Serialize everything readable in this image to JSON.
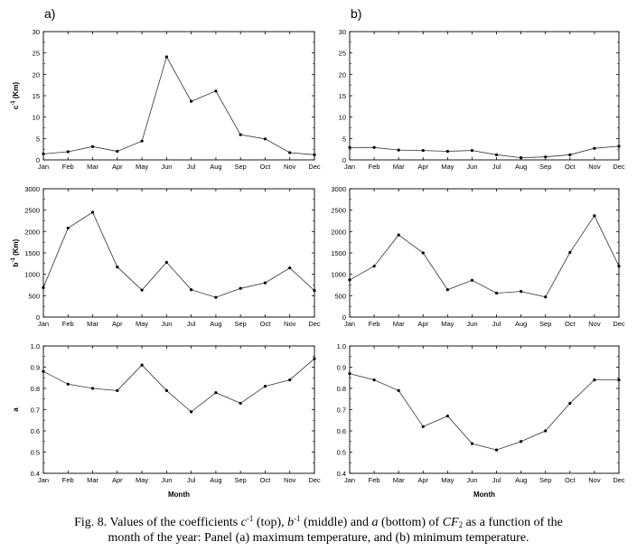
{
  "panel_labels": [
    "a)",
    "b)"
  ],
  "chart_data": [
    {
      "type": "line",
      "panel": "a",
      "row": "c",
      "ylabel_main": "c",
      "ylabel_sup": "-1",
      "ylabel_unit": " (Km)",
      "xlabel": "",
      "categories": [
        "Jan",
        "Feb",
        "Mar",
        "Apr",
        "May",
        "Jun",
        "Jul",
        "Aug",
        "Sep",
        "Oct",
        "Nov",
        "Dec"
      ],
      "values": [
        1.4,
        1.9,
        3.1,
        2.0,
        4.4,
        24.1,
        13.7,
        16.1,
        5.9,
        4.9,
        1.7,
        1.2
      ],
      "ylim": [
        0,
        30
      ],
      "yticks": [
        "0",
        "5",
        "10",
        "15",
        "20",
        "25",
        "30"
      ]
    },
    {
      "type": "line",
      "panel": "b",
      "row": "c",
      "ylabel_main": "",
      "ylabel_sup": "",
      "ylabel_unit": "",
      "xlabel": "",
      "categories": [
        "Jan",
        "Feb",
        "Mar",
        "Apr",
        "May",
        "Jun",
        "Jul",
        "Aug",
        "Sep",
        "Oct",
        "Nov",
        "Dec"
      ],
      "values": [
        2.9,
        2.9,
        2.3,
        2.2,
        2.0,
        2.2,
        1.2,
        0.5,
        0.7,
        1.2,
        2.7,
        3.2
      ],
      "ylim": [
        0,
        30
      ],
      "yticks": [
        "0",
        "5",
        "10",
        "15",
        "20",
        "25",
        "30"
      ]
    },
    {
      "type": "line",
      "panel": "a",
      "row": "b",
      "ylabel_main": "b",
      "ylabel_sup": "-1",
      "ylabel_unit": " (Km)",
      "xlabel": "",
      "categories": [
        "Jan",
        "Feb",
        "Mar",
        "Apr",
        "May",
        "Jun",
        "Jul",
        "Aug",
        "Sep",
        "Oct",
        "Nov",
        "Dec"
      ],
      "values": [
        690,
        2080,
        2450,
        1170,
        630,
        1280,
        640,
        460,
        670,
        800,
        1150,
        620
      ],
      "ylim": [
        0,
        3000
      ],
      "yticks": [
        "0",
        "500",
        "1000",
        "1500",
        "2000",
        "2500",
        "3000"
      ]
    },
    {
      "type": "line",
      "panel": "b",
      "row": "b",
      "ylabel_main": "",
      "ylabel_sup": "",
      "ylabel_unit": "",
      "xlabel": "",
      "categories": [
        "Jan",
        "Feb",
        "Mar",
        "Apr",
        "May",
        "Jun",
        "Jul",
        "Aug",
        "Sep",
        "Oct",
        "Nov",
        "Dec"
      ],
      "values": [
        870,
        1190,
        1920,
        1500,
        640,
        860,
        560,
        600,
        470,
        1510,
        2370,
        1190
      ],
      "ylim": [
        0,
        3000
      ],
      "yticks": [
        "0",
        "500",
        "1000",
        "1500",
        "2000",
        "2500",
        "3000"
      ]
    },
    {
      "type": "line",
      "panel": "a",
      "row": "a",
      "ylabel_main": "a",
      "ylabel_sup": "",
      "ylabel_unit": "",
      "xlabel": "Month",
      "categories": [
        "Jan",
        "Feb",
        "Mar",
        "Apr",
        "May",
        "Jun",
        "Jul",
        "Aug",
        "Sep",
        "Oct",
        "Nov",
        "Dec"
      ],
      "values": [
        0.88,
        0.82,
        0.8,
        0.79,
        0.91,
        0.79,
        0.69,
        0.78,
        0.73,
        0.81,
        0.84,
        0.94
      ],
      "ylim": [
        0.4,
        1.0
      ],
      "yticks": [
        "0.4",
        "0.5",
        "0.6",
        "0.7",
        "0.8",
        "0.9",
        "1.0"
      ]
    },
    {
      "type": "line",
      "panel": "b",
      "row": "a",
      "ylabel_main": "",
      "ylabel_sup": "",
      "ylabel_unit": "",
      "xlabel": "Month",
      "categories": [
        "Jan",
        "Feb",
        "Mar",
        "Apr",
        "May",
        "Jun",
        "Jul",
        "Aug",
        "Sep",
        "Oct",
        "Nov",
        "Dec"
      ],
      "values": [
        0.87,
        0.84,
        0.79,
        0.62,
        0.67,
        0.54,
        0.51,
        0.55,
        0.6,
        0.73,
        0.84,
        0.84
      ],
      "ylim": [
        0.4,
        1.0
      ],
      "yticks": [
        "0.4",
        "0.5",
        "0.6",
        "0.7",
        "0.8",
        "0.9",
        "1.0"
      ]
    }
  ],
  "caption": {
    "p1": "Fig. 8. Values of the coefficients ",
    "c": "c",
    "c_sup": "-1",
    "p2": " (top), ",
    "b": "b",
    "b_sup": "-1",
    "p3": " (middle) and ",
    "a": "a",
    "p4": " (bottom) of ",
    "cf": "CF",
    "cf_sub": "2",
    "p5": " as a function of the",
    "line2": "month of the year: Panel (a) maximum temperature, and (b) minimum temperature."
  }
}
